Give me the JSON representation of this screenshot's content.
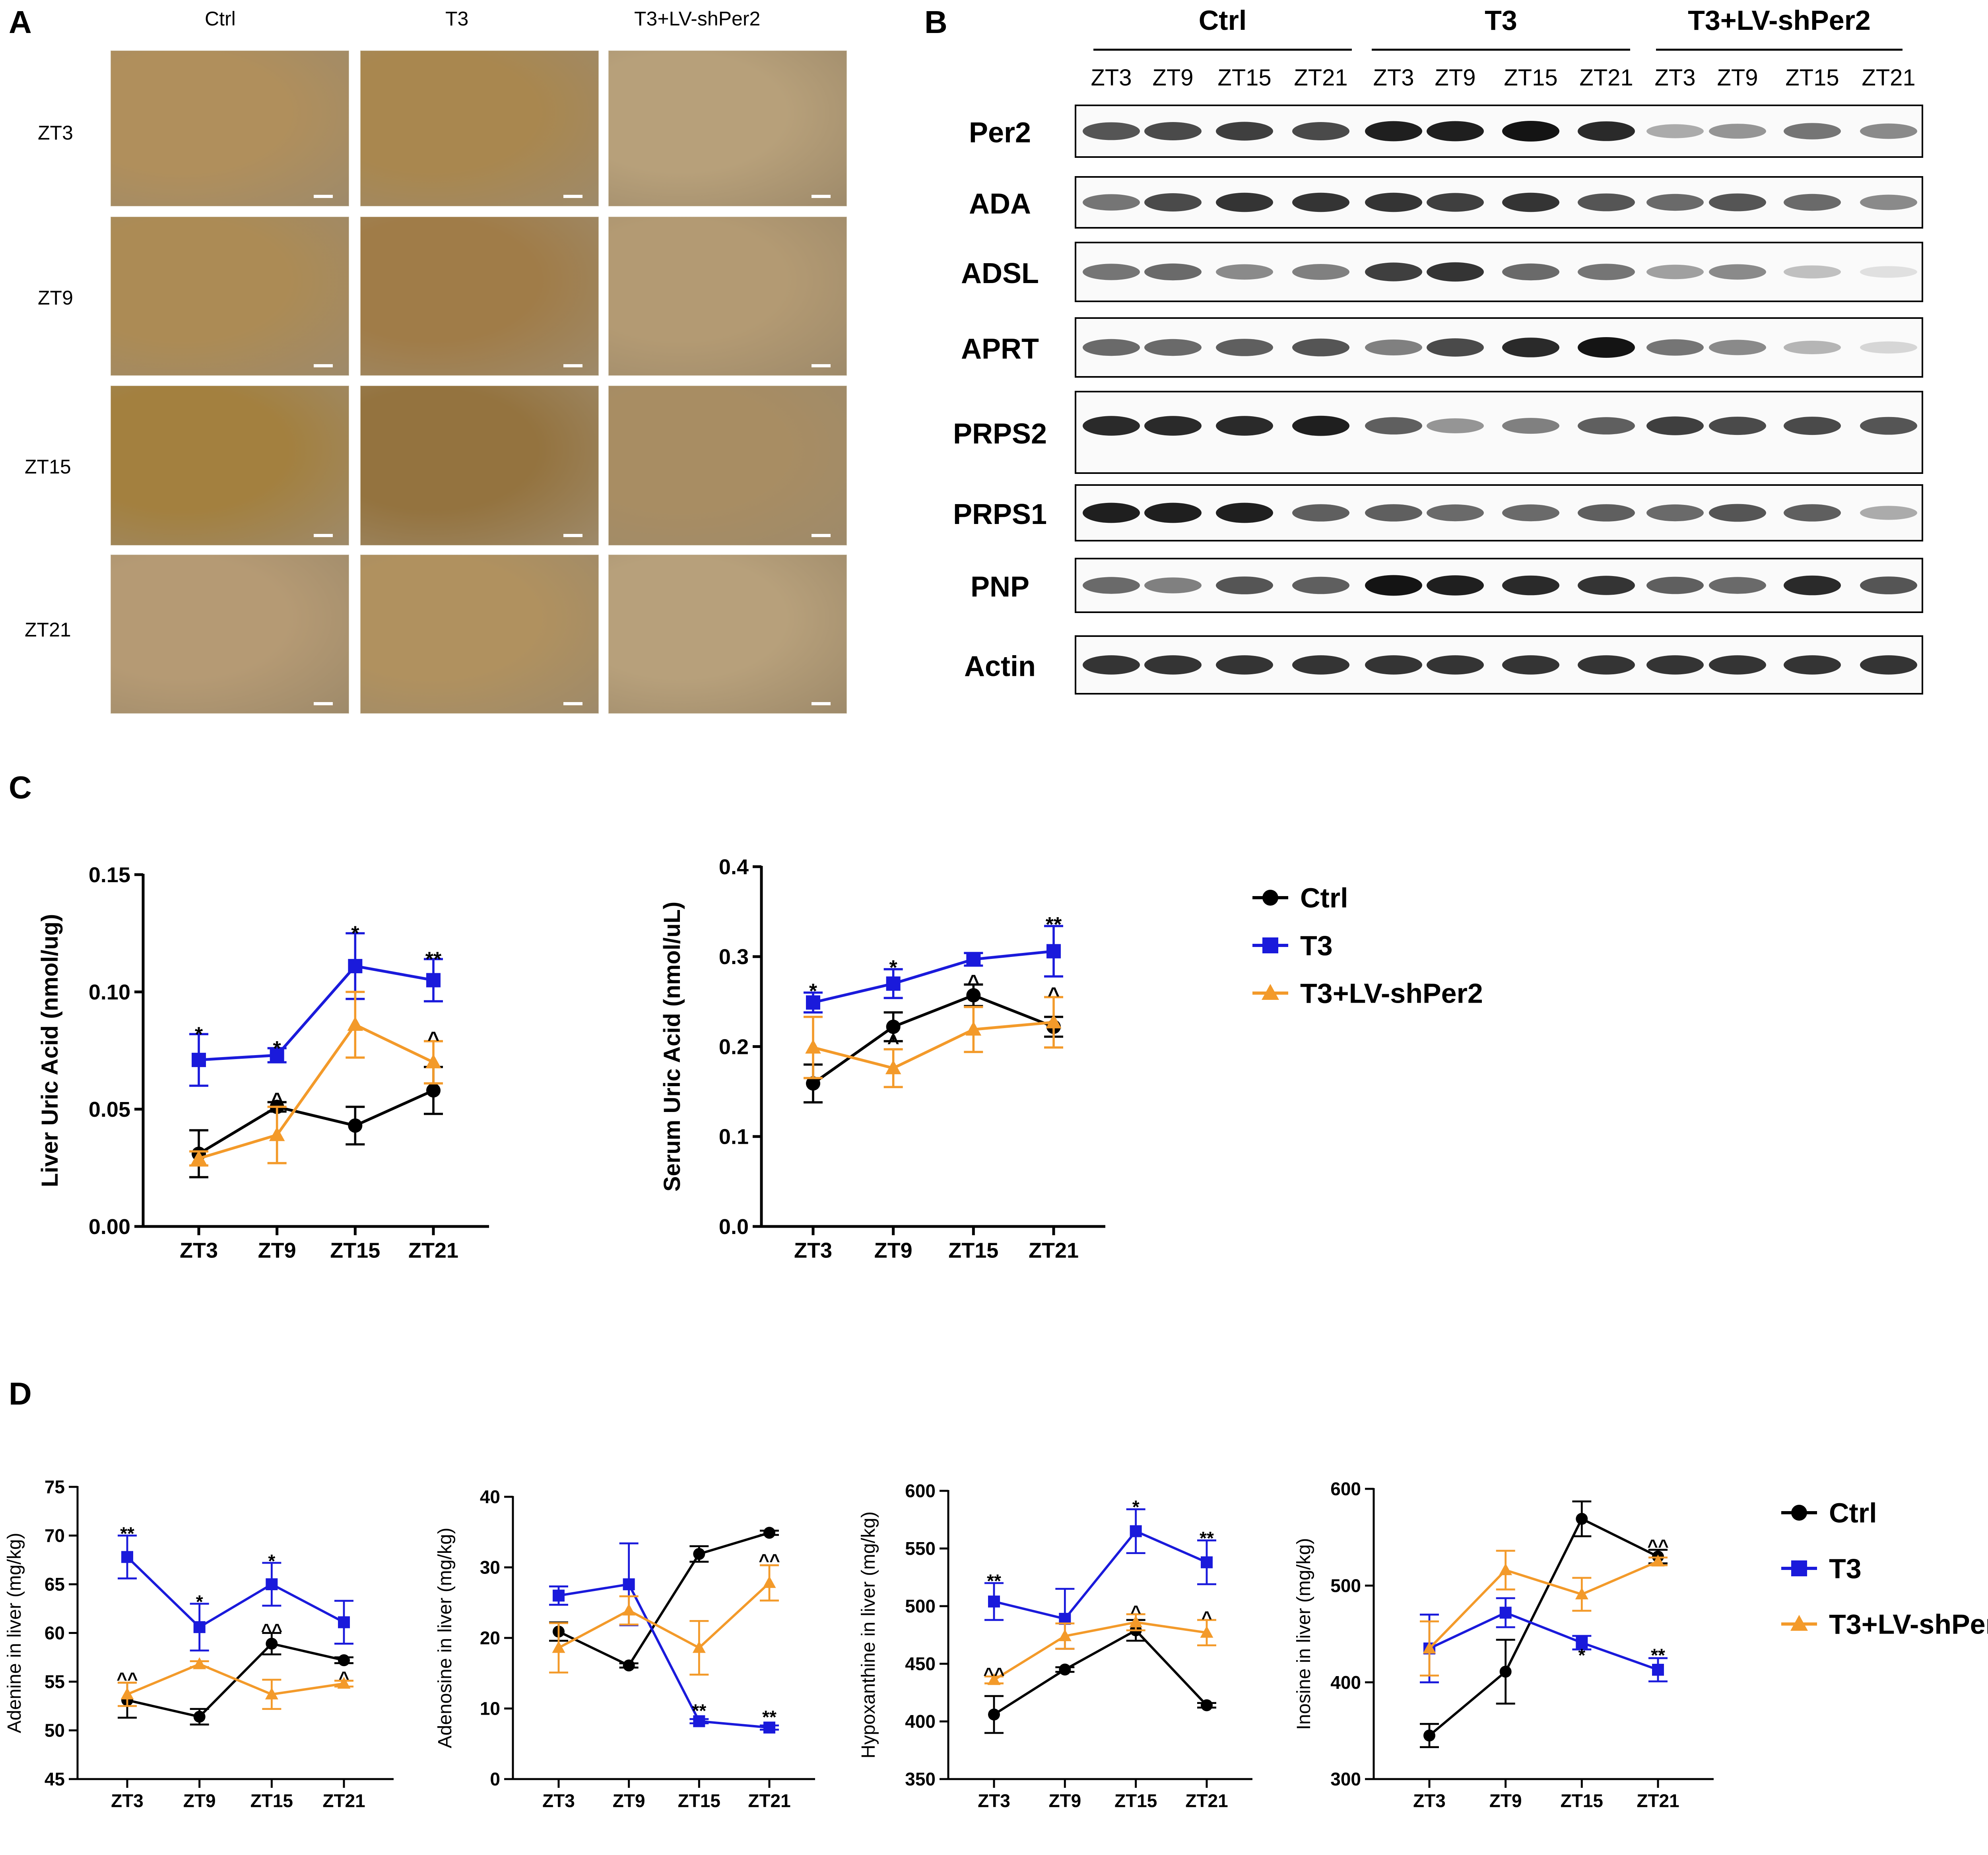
{
  "panels": {
    "a": "A",
    "b": "B",
    "c": "C",
    "d": "D"
  },
  "panel_a": {
    "groups": [
      "Ctrl",
      "T3",
      "T3+LV-shPer2"
    ],
    "rows": [
      "ZT3",
      "ZT9",
      "ZT15",
      "ZT21"
    ]
  },
  "panel_b": {
    "groups": [
      "Ctrl",
      "T3",
      "T3+LV-shPer2"
    ],
    "lanes": [
      "ZT3",
      "ZT9",
      "ZT15",
      "ZT21",
      "ZT3",
      "ZT9",
      "ZT15",
      "ZT21",
      "ZT3",
      "ZT9",
      "ZT15",
      "ZT21"
    ],
    "proteins": [
      "Per2",
      "ADA",
      "ADSL",
      "APRT",
      "PRPS2",
      "PRPS1",
      "PNP",
      "Actin"
    ],
    "band_intensity": [
      [
        0.7,
        0.75,
        0.8,
        0.75,
        0.95,
        0.95,
        1.0,
        0.9,
        0.3,
        0.4,
        0.55,
        0.45
      ],
      [
        0.55,
        0.75,
        0.85,
        0.85,
        0.85,
        0.8,
        0.85,
        0.7,
        0.6,
        0.7,
        0.6,
        0.45
      ],
      [
        0.55,
        0.6,
        0.45,
        0.5,
        0.8,
        0.85,
        0.6,
        0.55,
        0.35,
        0.45,
        0.2,
        0.05
      ],
      [
        0.6,
        0.6,
        0.65,
        0.7,
        0.5,
        0.75,
        0.9,
        1.0,
        0.55,
        0.45,
        0.25,
        0.1
      ],
      [
        0.9,
        0.9,
        0.9,
        0.95,
        0.65,
        0.4,
        0.5,
        0.65,
        0.8,
        0.75,
        0.75,
        0.7
      ],
      [
        0.95,
        0.95,
        0.95,
        0.65,
        0.65,
        0.6,
        0.6,
        0.65,
        0.6,
        0.7,
        0.65,
        0.3
      ],
      [
        0.6,
        0.5,
        0.7,
        0.65,
        1.0,
        0.95,
        0.9,
        0.85,
        0.65,
        0.6,
        0.9,
        0.7
      ],
      [
        0.85,
        0.85,
        0.85,
        0.85,
        0.85,
        0.85,
        0.85,
        0.85,
        0.85,
        0.85,
        0.85,
        0.85
      ]
    ]
  },
  "legend": {
    "entries": [
      "Ctrl",
      "T3",
      "T3+LV-shPer2"
    ]
  },
  "colors": {
    "ctrl": "#000000",
    "t3": "#1a1adb",
    "shper2": "#f39a2a"
  },
  "chart_data": [
    {
      "id": "liver-uric-acid",
      "type": "line",
      "title": "",
      "xlabel": "",
      "ylabel": "Liver Uric Acid (nmol/ug)",
      "categories": [
        "ZT3",
        "ZT9",
        "ZT15",
        "ZT21"
      ],
      "ylim": [
        0,
        0.15
      ],
      "yticks": [
        0.0,
        0.05,
        0.1,
        0.15
      ],
      "ytick_labels": [
        "0.00",
        "0.05",
        "0.10",
        "0.15"
      ],
      "series": [
        {
          "name": "Ctrl",
          "values": [
            0.031,
            0.051,
            0.043,
            0.058
          ],
          "err": [
            0.01,
            0.002,
            0.008,
            0.01
          ]
        },
        {
          "name": "T3",
          "values": [
            0.071,
            0.073,
            0.111,
            0.105
          ],
          "err": [
            0.011,
            0.003,
            0.014,
            0.009
          ]
        },
        {
          "name": "T3+LV-shPer2",
          "values": [
            0.029,
            0.039,
            0.086,
            0.07
          ],
          "err": [
            0.003,
            0.012,
            0.014,
            0.009
          ]
        }
      ],
      "annotations": [
        {
          "cat": 0,
          "text": "*",
          "at": 0.082
        },
        {
          "cat": 1,
          "text": "*",
          "at": 0.076
        },
        {
          "cat": 1,
          "text": "^",
          "at": 0.054
        },
        {
          "cat": 2,
          "text": "*",
          "at": 0.125
        },
        {
          "cat": 3,
          "text": "**",
          "at": 0.114
        },
        {
          "cat": 3,
          "text": "^",
          "at": 0.08
        }
      ]
    },
    {
      "id": "serum-uric-acid",
      "type": "line",
      "title": "",
      "xlabel": "",
      "ylabel": "Serum Uric Acid (nmol/uL)",
      "categories": [
        "ZT3",
        "ZT9",
        "ZT15",
        "ZT21"
      ],
      "ylim": [
        0,
        0.4
      ],
      "yticks": [
        0.0,
        0.1,
        0.2,
        0.3,
        0.4
      ],
      "ytick_labels": [
        "0.0",
        "0.1",
        "0.2",
        "0.3",
        "0.4"
      ],
      "series": [
        {
          "name": "Ctrl",
          "values": [
            0.159,
            0.222,
            0.257,
            0.222
          ],
          "err": [
            0.021,
            0.016,
            0.012,
            0.011
          ]
        },
        {
          "name": "T3",
          "values": [
            0.249,
            0.27,
            0.297,
            0.306
          ],
          "err": [
            0.011,
            0.016,
            0.007,
            0.028
          ]
        },
        {
          "name": "T3+LV-shPer2",
          "values": [
            0.199,
            0.176,
            0.219,
            0.227
          ],
          "err": [
            0.034,
            0.021,
            0.025,
            0.028
          ]
        }
      ],
      "annotations": [
        {
          "cat": 0,
          "text": "*",
          "at": 0.262
        },
        {
          "cat": 1,
          "text": "*",
          "at": 0.288
        },
        {
          "cat": 1,
          "text": "^",
          "at": 0.205
        },
        {
          "cat": 2,
          "text": "^",
          "at": 0.272
        },
        {
          "cat": 3,
          "text": "**",
          "at": 0.336
        },
        {
          "cat": 3,
          "text": "^",
          "at": 0.258
        }
      ]
    },
    {
      "id": "adenine",
      "type": "line",
      "title": "",
      "xlabel": "",
      "ylabel": "Adenine in liver (mg/kg)",
      "categories": [
        "ZT3",
        "ZT9",
        "ZT15",
        "ZT21"
      ],
      "ylim": [
        45,
        75
      ],
      "yticks": [
        45,
        50,
        55,
        60,
        65,
        70,
        75
      ],
      "ytick_labels": [
        "45",
        "50",
        "55",
        "60",
        "65",
        "70",
        "75"
      ],
      "series": [
        {
          "name": "Ctrl",
          "values": [
            53.1,
            51.4,
            58.9,
            57.2
          ],
          "err": [
            1.8,
            0.8,
            1.1,
            0.3
          ]
        },
        {
          "name": "T3",
          "values": [
            67.8,
            60.6,
            65.0,
            61.1
          ],
          "err": [
            2.2,
            2.4,
            2.2,
            2.2
          ]
        },
        {
          "name": "T3+LV-shPer2",
          "values": [
            53.7,
            56.8,
            53.7,
            54.8
          ],
          "err": [
            1.2,
            0.3,
            1.5,
            0.3
          ]
        }
      ],
      "annotations": [
        {
          "cat": 0,
          "text": "**",
          "at": 70.2
        },
        {
          "cat": 0,
          "text": "^^",
          "at": 55.3
        },
        {
          "cat": 1,
          "text": "*",
          "at": 63.2
        },
        {
          "cat": 2,
          "text": "*",
          "at": 67.4
        },
        {
          "cat": 2,
          "text": "^^",
          "at": 60.3
        },
        {
          "cat": 3,
          "text": "^",
          "at": 55.4
        }
      ]
    },
    {
      "id": "adenosine",
      "type": "line",
      "title": "",
      "xlabel": "",
      "ylabel": "Adenosine in liver (mg/kg)",
      "categories": [
        "ZT3",
        "ZT9",
        "ZT15",
        "ZT21"
      ],
      "ylim": [
        0,
        40
      ],
      "yticks": [
        0,
        10,
        20,
        30,
        40
      ],
      "ytick_labels": [
        "0",
        "10",
        "20",
        "30",
        "40"
      ],
      "series": [
        {
          "name": "Ctrl",
          "values": [
            20.9,
            16.1,
            31.9,
            34.9
          ],
          "err": [
            1.3,
            0.3,
            1.1,
            0.3
          ]
        },
        {
          "name": "T3",
          "values": [
            26.0,
            27.6,
            8.2,
            7.3
          ],
          "err": [
            1.3,
            5.8,
            0.3,
            0.3
          ]
        },
        {
          "name": "T3+LV-shPer2",
          "values": [
            18.6,
            23.9,
            18.6,
            27.8
          ],
          "err": [
            3.5,
            2.0,
            3.8,
            2.5
          ]
        }
      ],
      "annotations": [
        {
          "cat": 2,
          "text": "**",
          "at": 9.7
        },
        {
          "cat": 3,
          "text": "^^",
          "at": 31.0
        },
        {
          "cat": 3,
          "text": "**",
          "at": 8.8
        }
      ]
    },
    {
      "id": "hypoxanthine",
      "type": "line",
      "title": "",
      "xlabel": "",
      "ylabel": "Hypoxanthine in liver (mg/kg)",
      "categories": [
        "ZT3",
        "ZT9",
        "ZT15",
        "ZT21"
      ],
      "ylim": [
        350,
        600
      ],
      "yticks": [
        350,
        400,
        450,
        500,
        550,
        600
      ],
      "ytick_labels": [
        "350",
        "400",
        "450",
        "500",
        "550",
        "600"
      ],
      "series": [
        {
          "name": "Ctrl",
          "values": [
            406,
            445,
            479,
            414
          ],
          "err": [
            16,
            2,
            9,
            2
          ]
        },
        {
          "name": "T3",
          "values": [
            504,
            489,
            565,
            538
          ],
          "err": [
            16,
            26,
            19,
            19
          ]
        },
        {
          "name": "T3+LV-shPer2",
          "values": [
            436,
            474,
            486,
            477
          ],
          "err": [
            3,
            11,
            7,
            11
          ]
        }
      ],
      "annotations": [
        {
          "cat": 0,
          "text": "**",
          "at": 522
        },
        {
          "cat": 0,
          "text": "^^",
          "at": 441
        },
        {
          "cat": 2,
          "text": "*",
          "at": 586
        },
        {
          "cat": 2,
          "text": "^",
          "at": 495
        },
        {
          "cat": 3,
          "text": "**",
          "at": 559
        },
        {
          "cat": 3,
          "text": "^",
          "at": 490
        }
      ]
    },
    {
      "id": "inosine",
      "type": "line",
      "title": "",
      "xlabel": "",
      "ylabel": "Inosine in liver (mg/kg)",
      "categories": [
        "ZT3",
        "ZT9",
        "ZT15",
        "ZT21"
      ],
      "ylim": [
        300,
        600
      ],
      "yticks": [
        300,
        400,
        500,
        600
      ],
      "ytick_labels": [
        "300",
        "400",
        "500",
        "600"
      ],
      "series": [
        {
          "name": "Ctrl",
          "values": [
            345,
            411,
            569,
            530
          ],
          "err": [
            12,
            33,
            18,
            7
          ]
        },
        {
          "name": "T3",
          "values": [
            435,
            472,
            441,
            413
          ],
          "err": [
            35,
            15,
            7,
            12
          ]
        },
        {
          "name": "T3+LV-shPer2",
          "values": [
            435,
            516,
            491,
            525
          ],
          "err": [
            28,
            20,
            17,
            4
          ]
        }
      ],
      "annotations": [
        {
          "cat": 2,
          "text": "*",
          "at": 428
        },
        {
          "cat": 3,
          "text": "^^",
          "at": 541
        },
        {
          "cat": 3,
          "text": "**",
          "at": 428
        }
      ]
    }
  ]
}
